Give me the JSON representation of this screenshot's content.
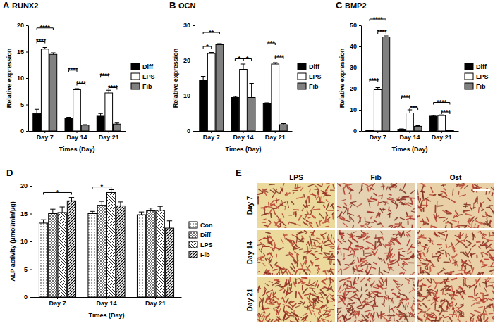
{
  "chart_data": [
    {
      "type": "bar",
      "title": "RUNX2",
      "annotations": [
        "A"
      ],
      "xlabel": "Times (Day)",
      "ylabel": "Relative expression",
      "categories": [
        "Day 7",
        "Day 14",
        "Day 21"
      ],
      "series": [
        {
          "name": "Diff",
          "color": "#000000",
          "values": [
            3.3,
            2.4,
            2.8
          ],
          "errors": [
            0.8,
            0.2,
            0.5
          ]
        },
        {
          "name": "LPS",
          "color": "#ffffff",
          "values": [
            15.5,
            7.8,
            7.2
          ],
          "errors": [
            0.3,
            0.2,
            0.5
          ]
        },
        {
          "name": "Fib",
          "color": "#808080",
          "values": [
            14.5,
            1.1,
            1.3
          ],
          "errors": [
            0.3,
            0.1,
            0.2
          ]
        }
      ],
      "ylim": [
        0,
        20
      ],
      "yticks": [
        0,
        5,
        10,
        15,
        20
      ],
      "legend": "right",
      "significance": [
        {
          "category": "Day 7",
          "from": "Diff",
          "to": "LPS",
          "y": 17,
          "text": "****"
        },
        {
          "category": "Day 7",
          "from": "Diff",
          "to": "Fib",
          "y": 19.5,
          "text": "****"
        },
        {
          "category": "Day 14",
          "from": "Diff",
          "to": "LPS",
          "y": 11.5,
          "text": "****"
        },
        {
          "category": "Day 14",
          "from": "LPS",
          "to": "Fib",
          "y": 9,
          "text": "****"
        },
        {
          "category": "Day 21",
          "from": "Diff",
          "to": "LPS",
          "y": 10.5,
          "text": "****"
        },
        {
          "category": "Day 21",
          "from": "LPS",
          "to": "Fib",
          "y": 8.2,
          "text": "****"
        }
      ]
    },
    {
      "type": "bar",
      "title": "OCN",
      "annotations": [
        "B"
      ],
      "xlabel": "Times (Day)",
      "ylabel": "Relative expression",
      "categories": [
        "Day 7",
        "Day 14",
        "Day 21"
      ],
      "series": [
        {
          "name": "Diff",
          "color": "#000000",
          "values": [
            14.5,
            9.5,
            7.7
          ],
          "errors": [
            1,
            0.3,
            0.3
          ]
        },
        {
          "name": "LPS",
          "color": "#ffffff",
          "values": [
            22,
            17.5,
            19
          ],
          "errors": [
            0.3,
            1.5,
            0.4
          ]
        },
        {
          "name": "Fib",
          "color": "#808080",
          "values": [
            24.5,
            9.5,
            1.8
          ],
          "errors": [
            0.3,
            4,
            0.3
          ]
        }
      ],
      "ylim": [
        0,
        30
      ],
      "yticks": [
        0,
        10,
        20,
        30
      ],
      "legend": "right",
      "significance": [
        {
          "category": "Day 7",
          "from": "Diff",
          "to": "LPS",
          "y": 24,
          "text": "*"
        },
        {
          "category": "Day 7",
          "from": "Diff",
          "to": "Fib",
          "y": 28,
          "text": "**"
        },
        {
          "category": "Day 14",
          "from": "Diff",
          "to": "LPS",
          "y": 20.5,
          "text": "*"
        },
        {
          "category": "Day 14",
          "from": "LPS",
          "to": "Fib",
          "y": 20.5,
          "text": "*"
        },
        {
          "category": "Day 21",
          "from": "Diff",
          "to": "LPS",
          "y": 25,
          "text": "***"
        },
        {
          "category": "Day 21",
          "from": "LPS",
          "to": "Fib",
          "y": 21,
          "text": "****"
        }
      ]
    },
    {
      "type": "bar",
      "title": "BMP2",
      "annotations": [
        "C"
      ],
      "xlabel": "Times (Day)",
      "ylabel": "Relative expression",
      "categories": [
        "Day 7",
        "Day 14",
        "Day 21"
      ],
      "series": [
        {
          "name": "Diff",
          "color": "#000000",
          "values": [
            0.3,
            0.8,
            7
          ],
          "errors": [
            0.1,
            0.2,
            0.3
          ]
        },
        {
          "name": "LPS",
          "color": "#ffffff",
          "values": [
            19.5,
            8.5,
            7.3
          ],
          "errors": [
            1,
            1.5,
            0.3
          ]
        },
        {
          "name": "Fib",
          "color": "#808080",
          "values": [
            44.5,
            2.2,
            0.3
          ],
          "errors": [
            0.5,
            0.3,
            0.1
          ]
        }
      ],
      "ylim": [
        0,
        50
      ],
      "yticks": [
        0,
        10,
        20,
        30,
        40,
        50
      ],
      "legend": "right",
      "significance": [
        {
          "category": "Day 7",
          "from": "Diff",
          "to": "LPS",
          "y": 24,
          "text": "****"
        },
        {
          "category": "Day 7",
          "from": "LPS",
          "to": "Fib",
          "y": 47,
          "text": "****"
        },
        {
          "category": "Day 7",
          "from": "Diff",
          "to": "Fib",
          "y": 53,
          "text": "****"
        },
        {
          "category": "Day 14",
          "from": "Diff",
          "to": "LPS",
          "y": 16,
          "text": "****"
        },
        {
          "category": "Day 14",
          "from": "LPS",
          "to": "Fib",
          "y": 11,
          "text": "***"
        },
        {
          "category": "Day 21",
          "from": "Diff",
          "to": "Fib",
          "y": 13.5,
          "text": "****"
        },
        {
          "category": "Day 21",
          "from": "LPS",
          "to": "Fib",
          "y": 9,
          "text": "****"
        }
      ]
    },
    {
      "type": "bar",
      "annotations": [
        "D"
      ],
      "xlabel": "Times (Day)",
      "ylabel": "ALP activity (μmol/min/μg)",
      "categories": [
        "Day 7",
        "Day 14",
        "Day 21"
      ],
      "series": [
        {
          "name": "Con",
          "color": "#000000",
          "marker": "dots",
          "values": [
            13.3,
            15,
            14.8
          ],
          "errors": [
            0.6,
            0.4,
            0.5
          ]
        },
        {
          "name": "Diff",
          "color": "#000000",
          "marker": "checks",
          "values": [
            15,
            16.5,
            15.5
          ],
          "errors": [
            0.8,
            0.7,
            0.5
          ]
        },
        {
          "name": "LPS",
          "color": "#000000",
          "marker": "backslash",
          "values": [
            15.2,
            18.8,
            15.6
          ],
          "errors": [
            1,
            0.5,
            0.7
          ]
        },
        {
          "name": "Fib",
          "color": "#000000",
          "marker": "slash",
          "values": [
            17.3,
            16.4,
            12.4
          ],
          "errors": [
            0.6,
            0.7,
            1.3
          ]
        }
      ],
      "ylim": [
        0,
        20
      ],
      "yticks": [
        0,
        5,
        10,
        15,
        20
      ],
      "legend": "right",
      "significance": [
        {
          "category": "Day 7",
          "from": "Con",
          "to": "Fib",
          "y": 18.8,
          "text": "*"
        },
        {
          "category": "Day 14",
          "from": "Con",
          "to": "LPS",
          "y": 19.8,
          "text": "*"
        }
      ]
    }
  ],
  "image_panel": {
    "label": "E",
    "columns": [
      "LPS",
      "Fib",
      "Ost"
    ],
    "rows": [
      "Day 7",
      "Day 14",
      "Day 21"
    ]
  }
}
